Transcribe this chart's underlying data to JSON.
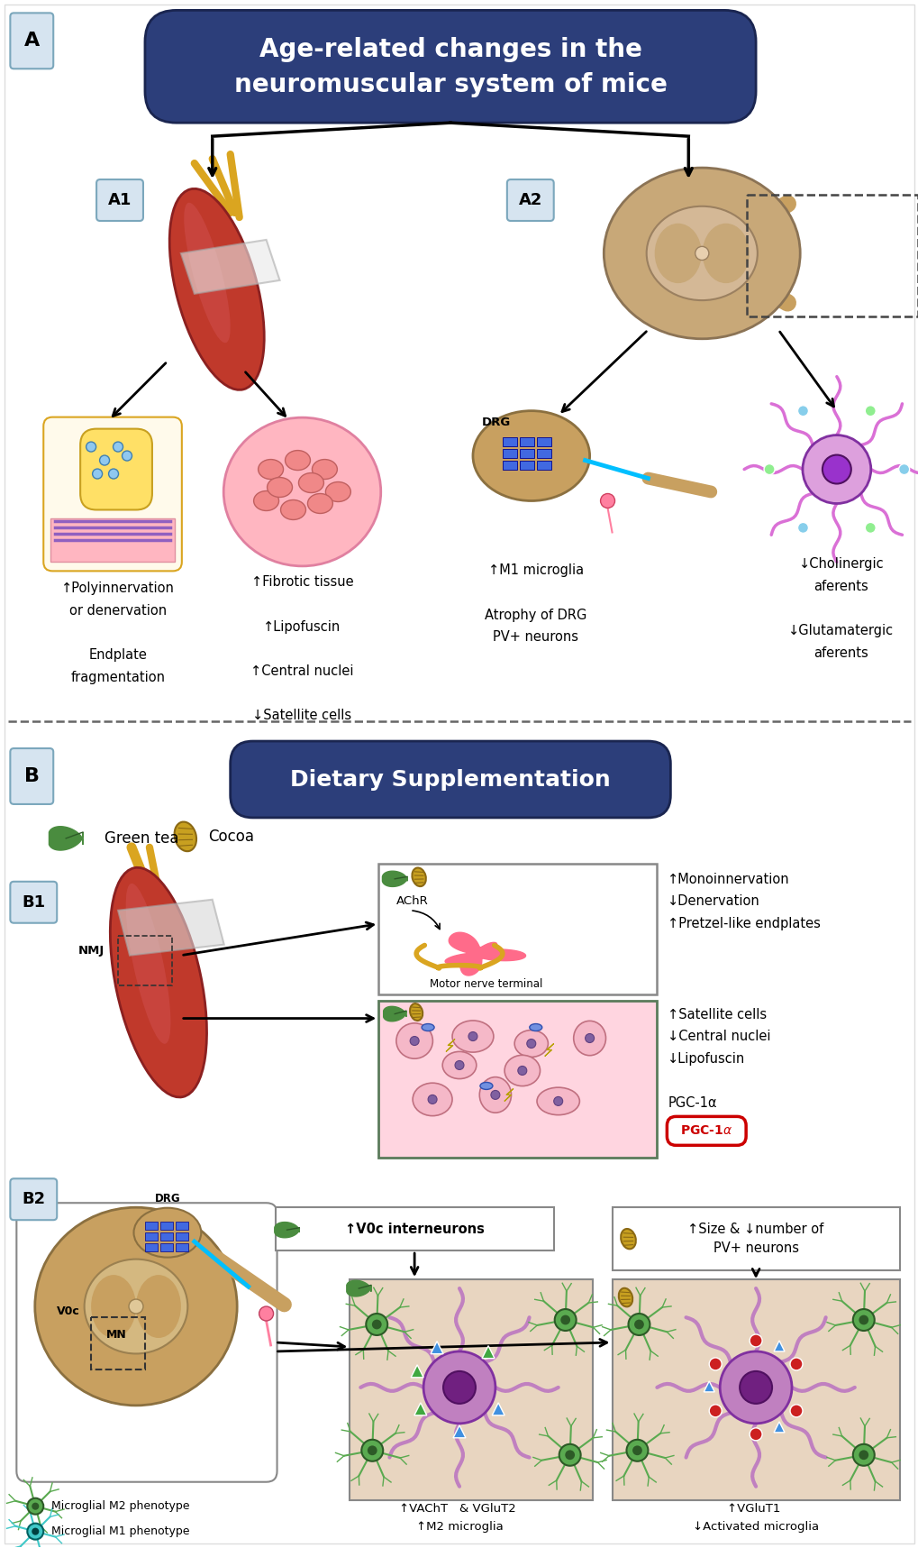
{
  "title_A": "Age-related changes in the\nneuromuscular system of mice",
  "title_B": "Dietary Supplementation",
  "header_color": "#2C3E7A",
  "header_text_color": "#FFFFFF",
  "label_A": "A",
  "label_B": "B",
  "label_A1": "A1",
  "label_A2": "A2",
  "label_B1": "B1",
  "label_B2": "B2",
  "text_A1_left": "↑Polyinnervation\nor denervation\n\nEndplate\nfragmentation",
  "text_A1_right": "↑Fibrotic tissue\n\n↑Lipofuscin\n\n↑Central nuclei\n\n↓Satellite cells",
  "text_A2_left": "↑M1 microglia\n\nAtrophy of DRG\nPV+ neurons",
  "text_A2_right": "↓Cholinergic\naferents\n\n↓Glutamatergic\naferents",
  "text_B1_box1_right": "↑Monoinnervation\n↓Denervation\n↑Pretzel-like endplates",
  "text_B1_box2_right": "↑Satellite cells\n↓Central nuclei\n↓Lipofuscin\n\nPGC-1α",
  "text_B2_left_legend1": "Microglial M2 phenotype",
  "text_B2_left_legend2": "Microglial M1 phenotype",
  "text_B2_box_top": "↑V0c interneurons",
  "text_B2_box_right_top": "↑Size & ↓number of\nPV+ neurons",
  "text_B2_mid_left": "↑VAChT   & VGluT2 \n↑M2 microglia",
  "text_B2_mid_right": "↑VGluT1 \n↓Activated microglia",
  "bg_color": "#FFFFFF",
  "header_color_dark": "#1a2550",
  "arrow_color": "#000000",
  "box_outline_color": "#5B7B5B",
  "label_bg_color": "#D6E4F0",
  "label_border_color": "#7BA7BC",
  "DRG_label": "DRG",
  "NMJ_label": "NMJ",
  "V0c_label": "V0c",
  "MN_label": "MN",
  "AChR_label": "AChR",
  "motor_nerve_label": "Motor nerve terminal",
  "green_tea_label": "Green tea",
  "cocoa_label": "Cocoa",
  "VAChT_text": "↑VAChT",
  "VGluT2_text": "& VGluT2",
  "M2_text": "↑M2 microglia",
  "VGluT1_text": "↑VGluT1",
  "activated_text": "↓Activated microglia"
}
